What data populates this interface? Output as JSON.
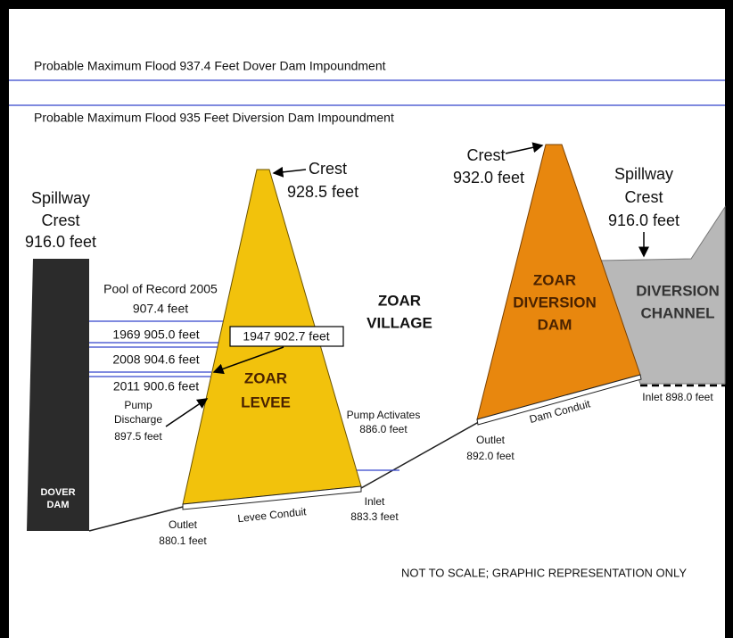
{
  "flood_lines": [
    "Probable Maximum Flood 937.4 Feet Dover Dam Impoundment",
    "Probable Maximum Flood 935 Feet Diversion Dam Impoundment"
  ],
  "dover_spillway": [
    "Spillway",
    "Crest",
    "916.0 feet"
  ],
  "dover_dam": [
    "DOVER",
    "DAM"
  ],
  "levee_crest": [
    "Crest",
    "928.5 feet"
  ],
  "pool_record": [
    "Pool of Record 2005",
    "907.4 feet"
  ],
  "pool_1969": "1969 905.0 feet",
  "pool_2008": "2008 904.6 feet",
  "pool_2011": "2011 900.6 feet",
  "pool_1947": "1947 902.7 feet",
  "pump_discharge": [
    "Pump",
    "Discharge",
    "897.5 feet"
  ],
  "zoar_levee": [
    "ZOAR",
    "LEVEE"
  ],
  "zoar_village": [
    "ZOAR",
    "VILLAGE"
  ],
  "levee_outlet": [
    "Outlet",
    "880.1 feet"
  ],
  "levee_conduit": "Levee Conduit",
  "levee_inlet": [
    "Inlet",
    "883.3 feet"
  ],
  "pump_activates": [
    "Pump Activates",
    "886.0 feet"
  ],
  "diversion_crest": [
    "Crest",
    "932.0 feet"
  ],
  "zoar_diversion_dam": [
    "ZOAR",
    "DIVERSION",
    "DAM"
  ],
  "dam_outlet": [
    "Outlet",
    "892.0 feet"
  ],
  "dam_conduit": "Dam Conduit",
  "dam_inlet": "Inlet 898.0 feet",
  "channel_spillway": [
    "Spillway",
    "Crest",
    "916.0 feet"
  ],
  "diversion_channel": [
    "DIVERSION",
    "CHANNEL"
  ],
  "note": "NOT TO SCALE; GRAPHIC REPRESENTATION ONLY"
}
